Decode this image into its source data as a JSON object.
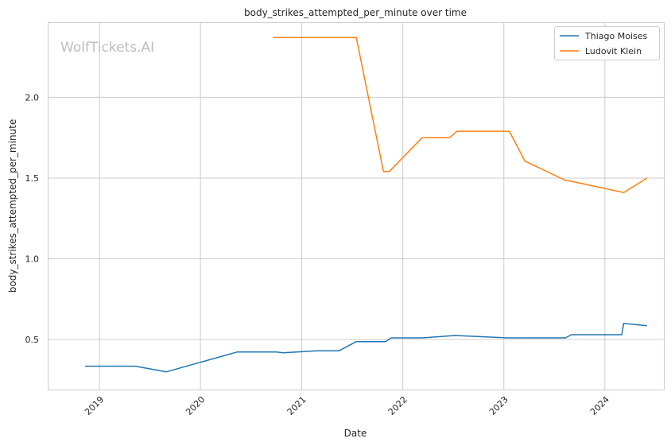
{
  "chart_data": {
    "type": "line",
    "title": "body_strikes_attempted_per_minute over time",
    "xlabel": "Date",
    "ylabel": "body_strikes_attempted_per_minute",
    "watermark": "WolfTickets.AI",
    "xlim": [
      "2018-07-01",
      "2024-08-01"
    ],
    "ylim": [
      0.19,
      2.46
    ],
    "x_ticks": [
      {
        "date": "2019-01-01",
        "label": "2019"
      },
      {
        "date": "2020-01-01",
        "label": "2020"
      },
      {
        "date": "2021-01-01",
        "label": "2021"
      },
      {
        "date": "2022-01-01",
        "label": "2022"
      },
      {
        "date": "2023-01-01",
        "label": "2023"
      },
      {
        "date": "2024-01-01",
        "label": "2024"
      }
    ],
    "y_ticks": [
      {
        "value": 0.5,
        "label": "0.5"
      },
      {
        "value": 1.0,
        "label": "1.0"
      },
      {
        "value": 1.5,
        "label": "1.5"
      },
      {
        "value": 2.0,
        "label": "2.0"
      }
    ],
    "grid": true,
    "legend_position": "top-right",
    "series": [
      {
        "name": "Thiago Moises",
        "color": "#1f77b4",
        "points": [
          [
            "2018-11-10",
            0.335
          ],
          [
            "2019-05-11",
            0.335
          ],
          [
            "2019-08-31",
            0.3
          ],
          [
            "2020-05-13",
            0.423
          ],
          [
            "2020-10-03",
            0.423
          ],
          [
            "2020-10-24",
            0.418
          ],
          [
            "2021-02-27",
            0.43
          ],
          [
            "2021-05-15",
            0.43
          ],
          [
            "2021-07-17",
            0.487
          ],
          [
            "2021-10-30",
            0.487
          ],
          [
            "2021-11-20",
            0.51
          ],
          [
            "2022-03-12",
            0.51
          ],
          [
            "2022-07-09",
            0.525
          ],
          [
            "2023-01-14",
            0.51
          ],
          [
            "2023-08-12",
            0.51
          ],
          [
            "2023-09-02",
            0.53
          ],
          [
            "2024-03-02",
            0.53
          ],
          [
            "2024-03-09",
            0.6
          ],
          [
            "2024-06-01",
            0.585
          ]
        ]
      },
      {
        "name": "Ludovit Klein",
        "color": "#ff7f0e",
        "points": [
          [
            "2020-09-19",
            2.37
          ],
          [
            "2021-07-17",
            2.37
          ],
          [
            "2021-10-23",
            1.54
          ],
          [
            "2021-11-13",
            1.54
          ],
          [
            "2022-03-12",
            1.75
          ],
          [
            "2022-06-18",
            1.75
          ],
          [
            "2022-07-16",
            1.79
          ],
          [
            "2023-01-21",
            1.79
          ],
          [
            "2023-03-18",
            1.605
          ],
          [
            "2023-08-12",
            1.485
          ],
          [
            "2023-09-02",
            1.48
          ],
          [
            "2024-03-09",
            1.41
          ],
          [
            "2024-06-01",
            1.5
          ]
        ]
      }
    ]
  }
}
